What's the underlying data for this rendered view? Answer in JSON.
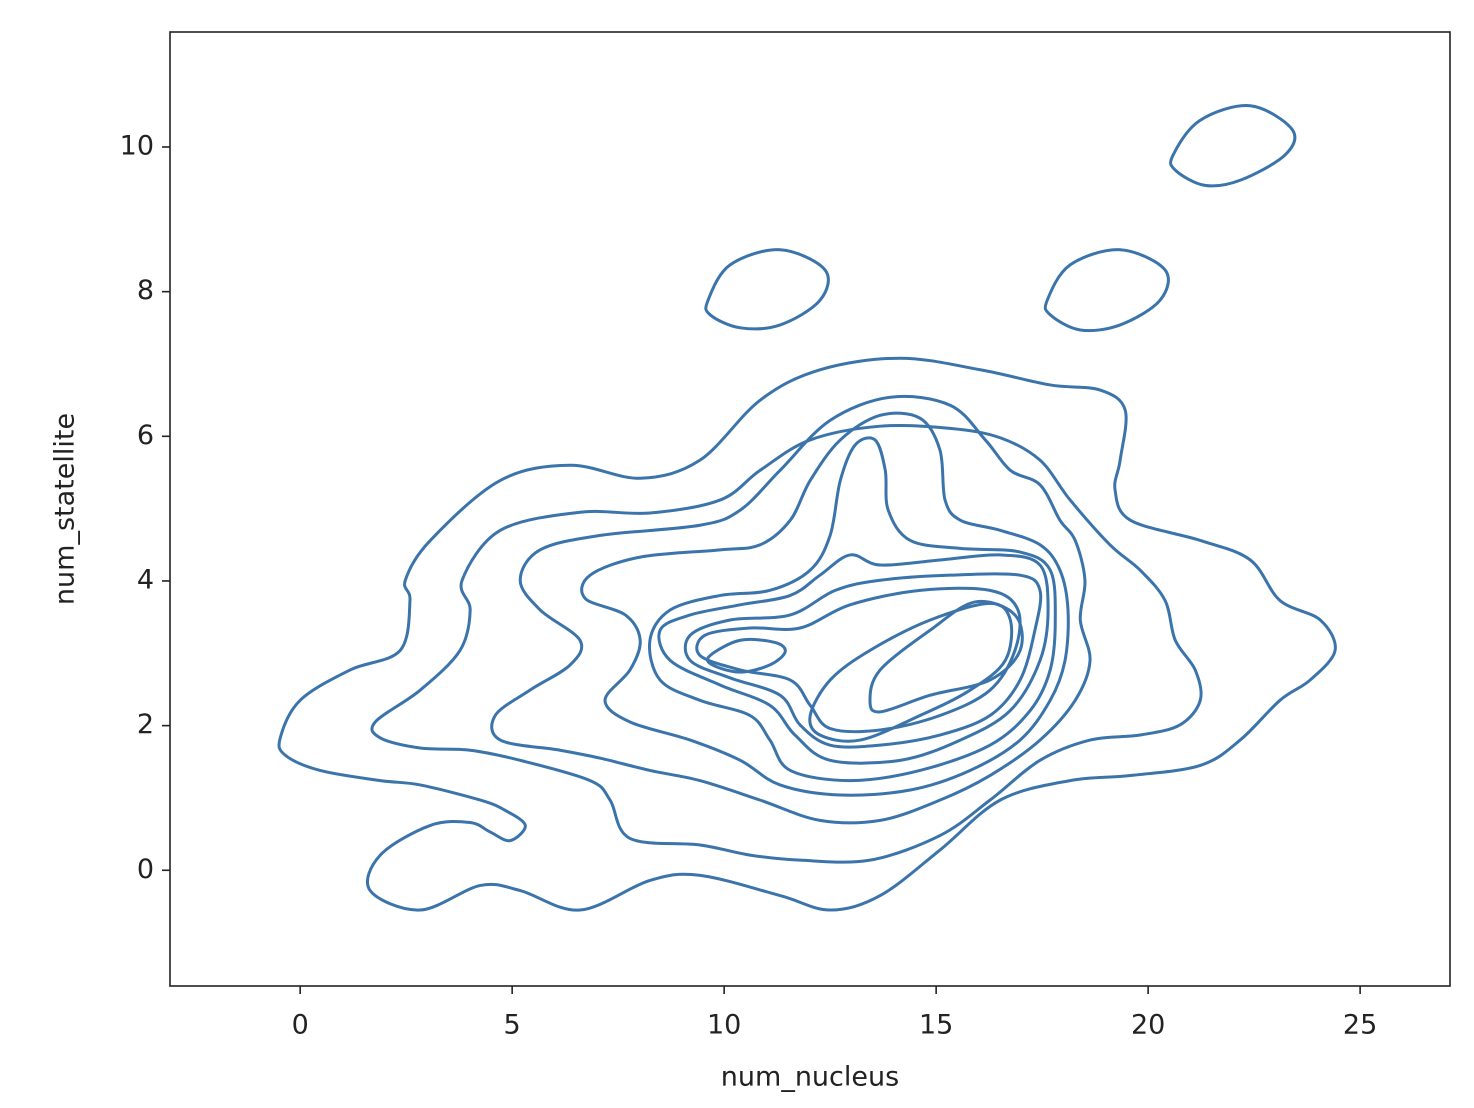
{
  "chart_data": {
    "type": "contour",
    "xlabel": "num_nucleus",
    "ylabel": "num_statellite",
    "xlim": [
      -3.07,
      27.12
    ],
    "ylim": [
      -1.6,
      11.59
    ],
    "xticks": [
      0,
      5,
      10,
      15,
      20,
      25
    ],
    "yticks": [
      0,
      2,
      4,
      6,
      8,
      10
    ],
    "color": "#3a74ab",
    "series": [
      {
        "x": [
          -0.47,
          0,
          1.18,
          2.36,
          2.59,
          2.48,
          3.07,
          4.72,
          6.37,
          8.02,
          9.43,
          10.85,
          12.26,
          14.15,
          16.04,
          17.69,
          18.87,
          19.46,
          19.34,
          19.22,
          19.58,
          21.23,
          22.41,
          23.11,
          24.06,
          24.41,
          23.82,
          23.11,
          22.17,
          21.23,
          19.58,
          18.16,
          16.51,
          15.09,
          13.68,
          12.5,
          11.32,
          9.43,
          8.25,
          6.6,
          5.19,
          4.25,
          2.83,
          1.65,
          1.89,
          3.07,
          4.01,
          4.48,
          4.95,
          5.31,
          4.83,
          4.25,
          2.83,
          1.89,
          0.47,
          -0.35
        ],
        "y": [
          1.83,
          2.35,
          2.77,
          3.04,
          3.73,
          4.01,
          4.56,
          5.39,
          5.6,
          5.42,
          5.67,
          6.5,
          6.92,
          7.08,
          6.92,
          6.71,
          6.64,
          6.36,
          5.67,
          5.26,
          4.84,
          4.56,
          4.29,
          3.73,
          3.46,
          3.04,
          2.63,
          2.35,
          1.8,
          1.45,
          1.31,
          1.24,
          0.97,
          0.28,
          -0.35,
          -0.55,
          -0.35,
          -0.07,
          -0.14,
          -0.55,
          -0.28,
          -0.21,
          -0.55,
          -0.28,
          0.21,
          0.62,
          0.66,
          0.53,
          0.41,
          0.62,
          0.83,
          0.97,
          1.18,
          1.24,
          1.38,
          1.59
        ]
      },
      {
        "x": [
          1.77,
          2.83,
          3.77,
          4.01,
          3.82,
          4.72,
          6.6,
          8.25,
          9.91,
          10.85,
          12.03,
          13.68,
          15.33,
          16.51,
          17.45,
          18.16,
          19.1,
          19.81,
          20.4,
          20.64,
          21.11,
          21.23,
          20.75,
          19.81,
          18.63,
          17.45,
          16.27,
          15.09,
          13.44,
          11.79,
          10.61,
          9.43,
          7.78,
          7.31,
          6.84,
          5.19,
          4.01,
          2.83,
          1.89
        ],
        "y": [
          2.05,
          2.49,
          3.04,
          3.6,
          4.01,
          4.7,
          4.95,
          4.94,
          5.12,
          5.53,
          5.95,
          6.14,
          6.11,
          5.98,
          5.67,
          5.12,
          4.5,
          4.15,
          3.73,
          3.18,
          2.77,
          2.35,
          2.01,
          1.87,
          1.8,
          1.52,
          0.97,
          0.48,
          0.14,
          0.14,
          0.21,
          0.35,
          0.44,
          0.97,
          1.24,
          1.52,
          1.66,
          1.69,
          1.83
        ]
      },
      {
        "x": [
          4.6,
          5.42,
          6.37,
          6.6,
          5.66,
          5.19,
          5.66,
          7.08,
          9.43,
          10.38,
          11.32,
          12.5,
          13.92,
          15.33,
          16.16,
          16.75,
          17.45,
          17.92,
          18.28,
          18.51,
          18.4,
          18.63,
          18.28,
          17.45,
          16.27,
          15.09,
          13.68,
          12.26,
          10.85,
          9.43,
          8.25,
          7.08,
          6.13,
          4.72
        ],
        "y": [
          2.14,
          2.49,
          2.84,
          3.18,
          3.6,
          4.01,
          4.43,
          4.63,
          4.77,
          4.98,
          5.53,
          6.22,
          6.54,
          6.43,
          5.95,
          5.53,
          5.33,
          4.84,
          4.56,
          4.01,
          3.46,
          2.9,
          2.35,
          1.8,
          1.31,
          0.97,
          0.69,
          0.69,
          0.97,
          1.24,
          1.38,
          1.55,
          1.66,
          1.8
        ]
      },
      {
        "x": [
          7.19,
          7.78,
          8.02,
          7.67,
          6.72,
          6.84,
          8.02,
          9.91,
          10.85,
          11.56,
          12.03,
          12.74,
          13.68,
          14.62,
          15.09,
          15.21,
          15.57,
          16.51,
          17.45,
          17.92,
          18.11,
          18.04,
          17.69,
          16.98,
          15.8,
          14.39,
          12.74,
          11.32,
          10.38,
          9.2,
          7.78
        ],
        "y": [
          2.35,
          2.77,
          3.18,
          3.53,
          3.76,
          4.08,
          4.33,
          4.43,
          4.5,
          4.84,
          5.39,
          5.95,
          6.29,
          6.25,
          5.81,
          5.12,
          4.84,
          4.7,
          4.5,
          4.15,
          3.6,
          2.9,
          2.35,
          1.8,
          1.38,
          1.11,
          1.04,
          1.18,
          1.52,
          1.8,
          2.05
        ]
      },
      {
        "x": [
          8.49,
          8.25,
          8.73,
          9.91,
          11.08,
          12.03,
          12.5,
          12.74,
          13.09,
          13.56,
          13.8,
          13.87,
          14.39,
          15.57,
          16.98,
          17.69,
          17.81,
          17.69,
          17.22,
          16.27,
          14.62,
          12.97,
          11.56,
          11.08,
          10.61,
          9.43
        ],
        "y": [
          2.63,
          3.18,
          3.6,
          3.8,
          3.87,
          4.15,
          4.63,
          5.39,
          5.88,
          5.95,
          5.53,
          4.98,
          4.56,
          4.45,
          4.4,
          4.15,
          3.46,
          2.77,
          2.21,
          1.73,
          1.38,
          1.24,
          1.38,
          1.8,
          2.14,
          2.35
        ]
      },
      {
        "x": [
          8.73,
          8.49,
          9.2,
          10.38,
          11.56,
          12.26,
          12.97,
          13.68,
          15.09,
          16.51,
          17.45,
          17.64,
          17.45,
          16.75,
          15.57,
          14.15,
          12.5,
          11.67,
          11.08,
          9.91
        ],
        "y": [
          2.9,
          3.32,
          3.53,
          3.67,
          3.8,
          4.08,
          4.36,
          4.22,
          4.29,
          4.36,
          4.22,
          3.6,
          2.9,
          2.21,
          1.8,
          1.52,
          1.52,
          1.87,
          2.28,
          2.56
        ]
      },
      {
        "x": [
          9.2,
          9.2,
          10.14,
          11.56,
          12.62,
          13.68,
          15.33,
          16.98,
          17.45,
          17.33,
          16.98,
          16.27,
          15.09,
          13.68,
          12.5,
          11.79,
          11.32,
          10.14
        ],
        "y": [
          2.9,
          3.25,
          3.46,
          3.53,
          3.87,
          4.01,
          4.08,
          4.08,
          3.87,
          3.32,
          2.63,
          2.14,
          1.87,
          1.73,
          1.73,
          2.01,
          2.42,
          2.66
        ]
      },
      {
        "x": [
          9.43,
          9.55,
          10.61,
          11.79,
          12.97,
          14.62,
          16.27,
          16.93,
          16.86,
          16.27,
          15.09,
          13.68,
          12.5,
          12.03,
          11.56,
          10.38
        ],
        "y": [
          2.97,
          3.25,
          3.35,
          3.35,
          3.67,
          3.87,
          3.87,
          3.6,
          3.04,
          2.49,
          2.14,
          1.94,
          1.96,
          2.28,
          2.63,
          2.77
        ]
      },
      {
        "x": [
          9.67,
          10.38,
          11.2,
          11.44,
          11.08,
          10.38,
          9.72
        ],
        "y": [
          2.97,
          3.18,
          3.15,
          3.02,
          2.84,
          2.74,
          2.84
        ]
      },
      {
        "x": [
          12.03,
          12.5,
          13.44,
          14.86,
          16.27,
          16.75,
          16.63,
          15.8,
          14.62,
          13.21,
          12.26
        ],
        "y": [
          2.14,
          2.63,
          3.04,
          3.46,
          3.69,
          3.46,
          2.9,
          2.49,
          2.14,
          1.8,
          1.87
        ]
      },
      {
        "x": [
          13.44,
          13.68,
          14.86,
          15.92,
          16.86,
          16.98,
          16.27,
          14.86,
          13.68
        ],
        "y": [
          2.35,
          2.77,
          3.32,
          3.71,
          3.53,
          3.04,
          2.63,
          2.42,
          2.19
        ]
      },
      {
        "x": [
          9.62,
          10.14,
          11.32,
          12.38,
          12.26,
          11.32,
          10.38,
          9.67
        ],
        "y": [
          7.88,
          8.37,
          8.58,
          8.3,
          7.88,
          7.54,
          7.5,
          7.68
        ]
      },
      {
        "x": [
          17.62,
          18.16,
          19.34,
          20.4,
          20.28,
          19.34,
          18.4,
          17.69
        ],
        "y": [
          7.88,
          8.37,
          8.58,
          8.3,
          7.88,
          7.54,
          7.47,
          7.68
        ]
      },
      {
        "x": [
          20.59,
          21.23,
          22.41,
          23.4,
          23.23,
          22.17,
          21.34,
          20.64
        ],
        "y": [
          9.89,
          10.37,
          10.57,
          10.24,
          9.89,
          9.54,
          9.47,
          9.68
        ]
      }
    ]
  }
}
